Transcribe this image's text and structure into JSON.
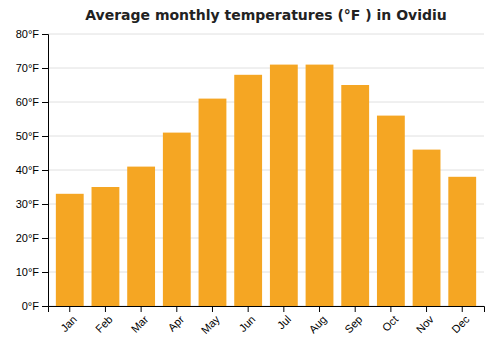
{
  "chart_data": {
    "type": "bar",
    "title": "Average monthly temperatures (°F ) in Ovidiu",
    "categories": [
      "Jan",
      "Feb",
      "Mar",
      "Apr",
      "May",
      "Jun",
      "Jul",
      "Aug",
      "Sep",
      "Oct",
      "Nov",
      "Dec"
    ],
    "values": [
      33,
      35,
      41,
      51,
      61,
      68,
      71,
      71,
      65,
      56,
      46,
      38
    ],
    "color": "#F5A623",
    "ylim": [
      0,
      80
    ],
    "yticks": [
      {
        "value": 0,
        "label": "0°F"
      },
      {
        "value": 10,
        "label": "10°F"
      },
      {
        "value": 20,
        "label": "20°F"
      },
      {
        "value": 30,
        "label": "30°F"
      },
      {
        "value": 40,
        "label": "40°F"
      },
      {
        "value": 50,
        "label": "50°F"
      },
      {
        "value": 60,
        "label": "60°F"
      },
      {
        "value": 70,
        "label": "70°F"
      },
      {
        "value": 80,
        "label": "80°F"
      }
    ],
    "grid": true
  }
}
